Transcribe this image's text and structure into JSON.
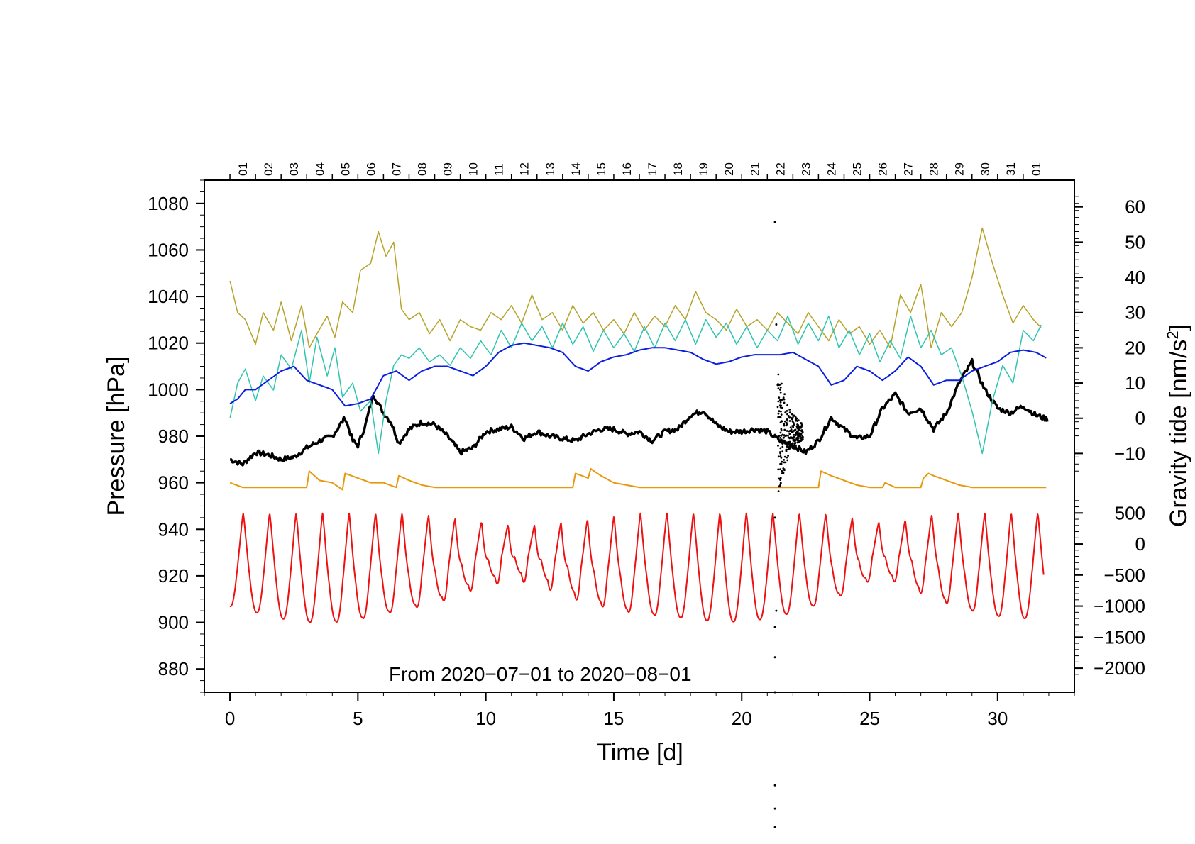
{
  "chart_data": {
    "type": "line",
    "annotation": "From 2020−07−01 to 2020−08−01",
    "xlabel": "Time [d]",
    "xlim": [
      -1,
      33
    ],
    "x_ticks": [
      "0",
      "5",
      "10",
      "15",
      "20",
      "25",
      "30"
    ],
    "ylabel_left": "Pressure [hPa]",
    "ylim_left": [
      870,
      1090
    ],
    "left_ticks": [
      "880",
      "900",
      "920",
      "940",
      "960",
      "980",
      "1000",
      "1020",
      "1040",
      "1060",
      "1080"
    ],
    "ylabel_right": "Gravity tide [nm/s",
    "ylabel_right_sup": "2",
    "ylabel_right_end": "]",
    "right_upper_range": [
      -15,
      63
    ],
    "right_upper_ticks": [
      "−10",
      "0",
      "10",
      "20",
      "30",
      "40",
      "50",
      "60"
    ],
    "right_lower_range": [
      -2200,
      800
    ],
    "right_lower_ticks": [
      "−2000",
      "−1500",
      "−1000",
      "−500",
      "0",
      "500"
    ],
    "top_day_labels": [
      "01",
      "02",
      "03",
      "04",
      "05",
      "06",
      "07",
      "08",
      "09",
      "10",
      "11",
      "12",
      "13",
      "14",
      "15",
      "16",
      "17",
      "18",
      "19",
      "20",
      "21",
      "22",
      "23",
      "24",
      "25",
      "26",
      "27",
      "28",
      "29",
      "30",
      "31",
      "01"
    ],
    "series": [
      {
        "name": "pressure",
        "color": "#000000",
        "axis": "left",
        "x": [
          0,
          0.5,
          1,
          1.5,
          2,
          2.5,
          3,
          3.5,
          4,
          4.5,
          4.8,
          5,
          5.3,
          5.6,
          6,
          6.3,
          6.6,
          7,
          7.5,
          8,
          8.5,
          9,
          9.5,
          10,
          10.5,
          11,
          11.5,
          12,
          12.5,
          13,
          13.5,
          14,
          14.5,
          15,
          15.5,
          16,
          16.5,
          17,
          17.5,
          18,
          18.5,
          19,
          19.5,
          20,
          20.5,
          21,
          21.5,
          22,
          22.5,
          23,
          23.5,
          24,
          24.5,
          25,
          25.5,
          26,
          26.5,
          27,
          27.5,
          28,
          28.5,
          29,
          29.5,
          30,
          30.5,
          31,
          31.5,
          32
        ],
        "values": [
          970,
          968,
          973,
          972,
          970,
          971,
          975,
          978,
          980,
          988,
          978,
          976,
          985,
          998,
          990,
          986,
          977,
          983,
          986,
          985,
          980,
          973,
          975,
          982,
          983,
          984,
          979,
          982,
          980,
          979,
          978,
          981,
          983,
          983,
          981,
          982,
          978,
          982,
          983,
          989,
          991,
          985,
          982,
          982,
          983,
          982,
          978,
          976,
          973,
          978,
          988,
          983,
          979,
          980,
          992,
          998,
          990,
          992,
          983,
          990,
          1003,
          1012,
          1000,
          992,
          990,
          993,
          989,
          987
        ]
      },
      {
        "name": "olive",
        "color": "#b5a32b",
        "axis": "right_upper",
        "x": [
          0,
          0.3,
          0.6,
          1,
          1.3,
          1.7,
          2,
          2.4,
          2.8,
          3.1,
          3.4,
          3.8,
          4.1,
          4.4,
          4.8,
          5.1,
          5.5,
          5.8,
          6.1,
          6.4,
          6.7,
          7,
          7.4,
          7.8,
          8.2,
          8.6,
          9,
          9.4,
          9.8,
          10.2,
          10.6,
          11,
          11.4,
          11.8,
          12.2,
          12.6,
          13,
          13.4,
          13.8,
          14.2,
          14.6,
          15,
          15.4,
          15.8,
          16.2,
          16.6,
          17,
          17.4,
          17.8,
          18.2,
          18.6,
          19,
          19.4,
          19.8,
          20.2,
          20.6,
          21,
          21.4,
          21.8,
          22.2,
          22.6,
          23,
          23.4,
          23.8,
          24.2,
          24.6,
          25,
          25.4,
          25.8,
          26.2,
          26.6,
          27,
          27.4,
          27.8,
          28.2,
          28.6,
          29,
          29.4,
          29.8,
          30.2,
          30.6,
          31,
          31.4,
          31.8
        ],
        "values": [
          39,
          30,
          28,
          21,
          30,
          25,
          33,
          22,
          32,
          20,
          24,
          29,
          23,
          33,
          30,
          42,
          44,
          53,
          46,
          50,
          31,
          28,
          30,
          24,
          28,
          22,
          28,
          26,
          25,
          30,
          28,
          32,
          27,
          35,
          28,
          30,
          25,
          32,
          27,
          30,
          25,
          28,
          24,
          30,
          25,
          29,
          26,
          32,
          28,
          36,
          30,
          28,
          25,
          31,
          26,
          28,
          25,
          30,
          27,
          24,
          30,
          26,
          22,
          28,
          24,
          26,
          21,
          25,
          20,
          35,
          30,
          38,
          20,
          30,
          26,
          30,
          40,
          54,
          44,
          35,
          27,
          32,
          28,
          25
        ]
      },
      {
        "name": "teal",
        "color": "#2ec4b0",
        "axis": "right_upper",
        "x": [
          0,
          0.3,
          0.6,
          1,
          1.3,
          1.7,
          2,
          2.4,
          2.8,
          3.1,
          3.4,
          3.8,
          4.1,
          4.4,
          4.8,
          5.1,
          5.5,
          5.8,
          6.1,
          6.4,
          6.7,
          7,
          7.4,
          7.8,
          8.2,
          8.6,
          9,
          9.4,
          9.8,
          10.2,
          10.6,
          11,
          11.4,
          11.8,
          12.2,
          12.6,
          13,
          13.4,
          13.8,
          14.2,
          14.6,
          15,
          15.4,
          15.8,
          16.2,
          16.6,
          17,
          17.4,
          17.8,
          18.2,
          18.6,
          19,
          19.4,
          19.8,
          20.2,
          20.6,
          21,
          21.4,
          21.8,
          22.2,
          22.6,
          23,
          23.4,
          23.8,
          24.2,
          24.6,
          25,
          25.4,
          25.8,
          26.2,
          26.6,
          27,
          27.4,
          27.8,
          28.2,
          28.6,
          29,
          29.4,
          29.8,
          30.2,
          30.6,
          31,
          31.4,
          31.8
        ],
        "values": [
          0,
          10,
          14,
          5,
          12,
          8,
          18,
          14,
          25,
          10,
          23,
          12,
          20,
          6,
          10,
          2,
          5,
          -10,
          5,
          15,
          18,
          17,
          20,
          16,
          18,
          15,
          20,
          17,
          22,
          18,
          25,
          20,
          27,
          22,
          26,
          20,
          27,
          21,
          26,
          19,
          25,
          20,
          24,
          19,
          26,
          20,
          27,
          22,
          28,
          21,
          28,
          23,
          27,
          21,
          26,
          20,
          25,
          22,
          29,
          21,
          27,
          22,
          29,
          20,
          25,
          18,
          24,
          16,
          22,
          17,
          29,
          20,
          25,
          18,
          20,
          12,
          2,
          -10,
          5,
          15,
          10,
          25,
          22,
          28
        ]
      },
      {
        "name": "blue",
        "color": "#0a1ee0",
        "axis": "left",
        "x": [
          0,
          0.3,
          0.6,
          1,
          1.5,
          2,
          2.5,
          3,
          3.5,
          4,
          4.5,
          5,
          5.5,
          6,
          6.5,
          7,
          7.5,
          8,
          8.5,
          9,
          9.5,
          10,
          10.5,
          11,
          11.5,
          12,
          12.5,
          13,
          13.5,
          14,
          14.5,
          15,
          15.5,
          16,
          16.5,
          17,
          17.5,
          18,
          18.5,
          19,
          19.5,
          20,
          20.5,
          21,
          21.5,
          22,
          22.5,
          23,
          23.5,
          24,
          24.5,
          25,
          25.5,
          26,
          26.5,
          27,
          27.5,
          28,
          28.5,
          29,
          29.5,
          30,
          30.5,
          31,
          31.5,
          32
        ],
        "values": [
          994,
          996,
          1000,
          1000,
          1004,
          1008,
          1010,
          1004,
          1002,
          1000,
          993,
          994,
          996,
          1006,
          1008,
          1004,
          1008,
          1010,
          1010,
          1008,
          1006,
          1010,
          1016,
          1019,
          1020,
          1019,
          1018,
          1016,
          1010,
          1008,
          1012,
          1014,
          1015,
          1017,
          1018,
          1018,
          1017,
          1016,
          1013,
          1011,
          1012,
          1014,
          1015,
          1015,
          1015,
          1016,
          1013,
          1010,
          1002,
          1004,
          1010,
          1008,
          1004,
          1008,
          1014,
          1010,
          1002,
          1004,
          1004,
          1008,
          1010,
          1012,
          1016,
          1017,
          1016,
          1013
        ]
      },
      {
        "name": "orange",
        "color": "#e8980c",
        "axis": "left",
        "x": [
          0,
          0.5,
          1,
          1.5,
          2,
          2.5,
          3,
          3.1,
          3.5,
          4,
          4.4,
          4.5,
          5,
          5.5,
          6,
          6.5,
          6.6,
          7,
          7.5,
          8,
          9,
          10,
          11,
          12,
          13,
          13.4,
          13.5,
          14,
          14.1,
          14.5,
          15,
          15.5,
          16,
          17,
          18,
          19,
          20,
          21,
          22,
          23,
          23.1,
          23.5,
          24,
          24.5,
          25,
          25.5,
          25.6,
          26,
          27,
          27.1,
          27.3,
          27.5,
          28,
          28.5,
          29,
          30,
          31,
          32
        ],
        "values": [
          960,
          958,
          958,
          958,
          958,
          958,
          958,
          965,
          961,
          960,
          957,
          964,
          962,
          960,
          960,
          958,
          963,
          961,
          959,
          958,
          958,
          958,
          958,
          958,
          958,
          958,
          964,
          962,
          966,
          963,
          960,
          959,
          958,
          958,
          958,
          958,
          958,
          958,
          958,
          958,
          965,
          963,
          961,
          959,
          958,
          958,
          960,
          958,
          958,
          962,
          964,
          963,
          961,
          959,
          958,
          958,
          958,
          958
        ]
      },
      {
        "name": "red",
        "color": "#ee1111",
        "axis": "right_lower",
        "period_days": 1.035,
        "amp_lo": [
          -1000,
          -1100,
          -1200,
          -1250,
          -1250,
          -1200,
          -1100,
          -1000,
          -900,
          -700,
          -550,
          -450,
          -500,
          -700,
          -850,
          -1000,
          -1100,
          -1150,
          -1200,
          -1250,
          -1250,
          -1200,
          -1100,
          -950,
          -750,
          -500,
          -500,
          -700,
          -900,
          -1050,
          -1150,
          -1200,
          -1150
        ],
        "amp_hi": [
          500,
          500,
          500,
          500,
          500,
          500,
          500,
          500,
          450,
          400,
          350,
          300,
          300,
          350,
          400,
          450,
          500,
          500,
          500,
          500,
          500,
          500,
          500,
          500,
          450,
          350,
          350,
          450,
          500,
          500,
          500,
          500,
          500
        ],
        "secondary_amp": [
          0.05,
          0.05,
          0.05,
          0.08,
          0.1,
          0.12,
          0.15,
          0.2,
          0.3,
          0.45,
          0.6,
          0.75,
          0.7,
          0.55,
          0.4,
          0.25,
          0.15,
          0.1,
          0.06,
          0.05,
          0.05,
          0.05,
          0.08,
          0.15,
          0.3,
          0.5,
          0.55,
          0.4,
          0.25,
          0.15,
          0.1,
          0.05,
          0.05
        ]
      }
    ]
  }
}
